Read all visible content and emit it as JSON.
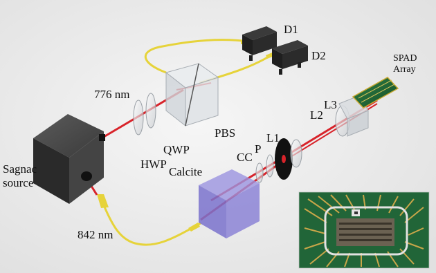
{
  "labels": {
    "d1": "D1",
    "d2": "D2",
    "spad_line1": "SPAD",
    "spad_line2": "Array",
    "l3": "L3",
    "l2": "L2",
    "wavelength_776": "776 nm",
    "pbs": "PBS",
    "qwp": "QWP",
    "hwp": "HWP",
    "l1": "L1",
    "p": "P",
    "cc": "CC",
    "calcite": "Calcite",
    "source_line1": "Sagnac",
    "source_line2": "source",
    "wavelength_842": "842 nm"
  },
  "colors": {
    "beam": "#d8232a",
    "fiber": "#e6d33a",
    "calcite": "#8c84d6",
    "chip_board": "#1f6a3a",
    "background": "#efefef"
  }
}
